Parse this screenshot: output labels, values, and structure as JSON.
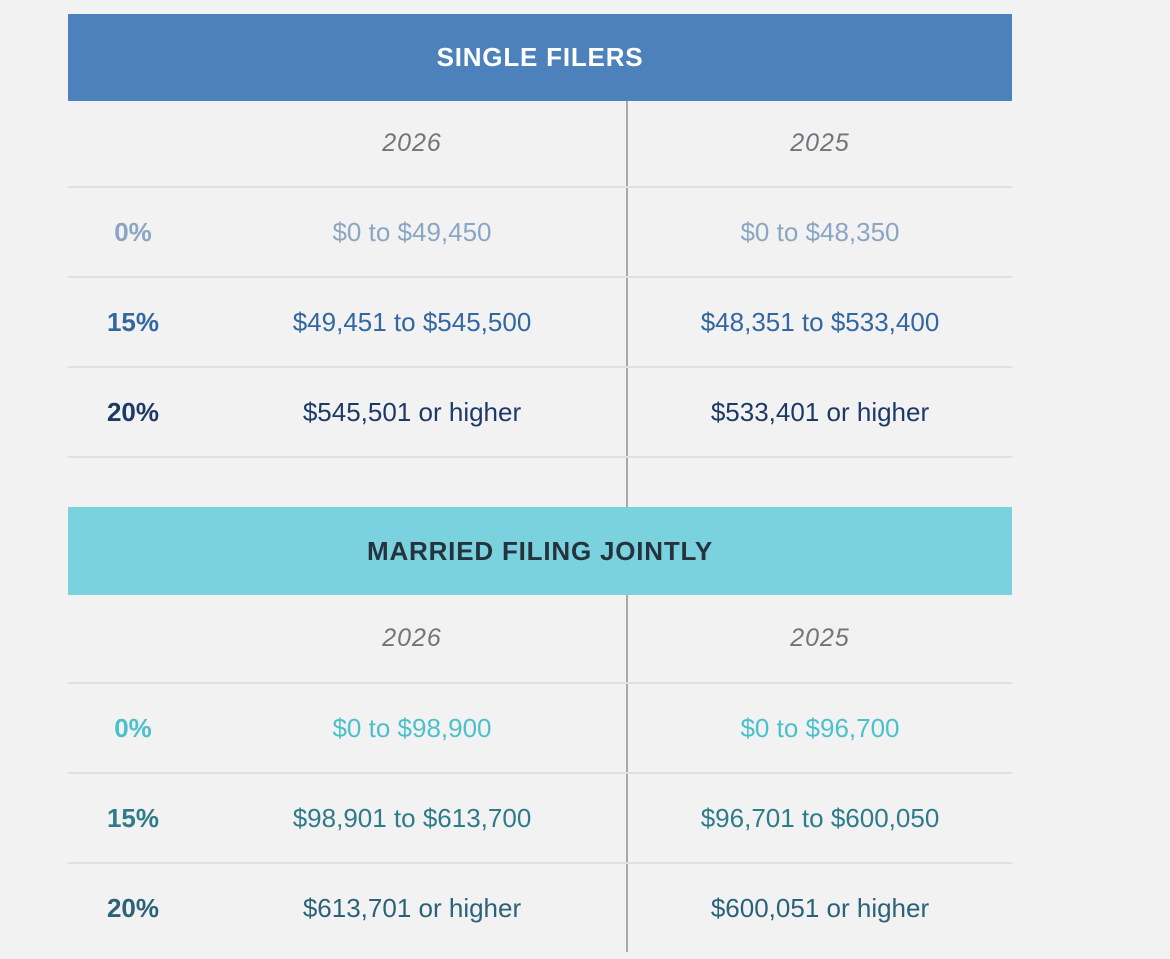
{
  "chart_data": [
    {
      "type": "table",
      "title": "SINGLE FILERS",
      "columns": [
        "",
        "2026",
        "2025"
      ],
      "rows": [
        [
          "0%",
          "$0 to $49,450",
          "$0 to $48,350"
        ],
        [
          "15%",
          "$49,451 to $545,500",
          "$48,351 to $533,400"
        ],
        [
          "20%",
          "$545,501 or higher",
          "$533,401 or higher"
        ]
      ]
    },
    {
      "type": "table",
      "title": "MARRIED FILING JOINTLY",
      "columns": [
        "",
        "2026",
        "2025"
      ],
      "rows": [
        [
          "0%",
          "$0 to $98,900",
          "$0 to $96,700"
        ],
        [
          "15%",
          "$98,901 to $613,700",
          "$96,701 to $600,050"
        ],
        [
          "20%",
          "$613,701 or higher",
          "$600,051 or higher"
        ]
      ]
    }
  ],
  "styles": {
    "page_bg": "#f2f2f3",
    "year_label_color": "#717478",
    "horizontal_divider": "#e0e0e3",
    "vertical_divider": "#a8a8ab",
    "tables": [
      {
        "header_bg": "#4d81bc",
        "header_text": "#ffffff",
        "row_colors": [
          "#8ba6c3",
          "#33679f",
          "#1d3a66"
        ]
      },
      {
        "header_bg": "#7ad2de",
        "header_text": "#25333e",
        "row_colors": [
          "#4cc0cb",
          "#2e7b89",
          "#2a6378"
        ]
      }
    ]
  }
}
